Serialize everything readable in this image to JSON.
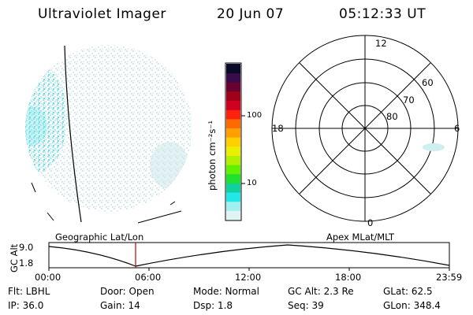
{
  "header": {
    "instrument": "Ultraviolet Imager",
    "date": "20 Jun 07",
    "time": "05:12:33 UT"
  },
  "colorbar": {
    "unit_label": "photon cm⁻²s⁻¹",
    "ticks": [
      "100",
      "10"
    ],
    "colors": [
      "#0a0a2a",
      "#3a0a4a",
      "#6a0030",
      "#a00018",
      "#d00020",
      "#ff2010",
      "#ff6a00",
      "#ffa000",
      "#ffd000",
      "#e8f000",
      "#b0f000",
      "#60f000",
      "#20e030",
      "#10d0a0",
      "#20e8e8",
      "#a0f0f0",
      "#e0f4f4"
    ]
  },
  "left_panel": {
    "label": "Geographic Lat/Lon"
  },
  "right_panel": {
    "label": "Apex MLat/MLT",
    "mlt_labels": {
      "top": "12",
      "left": "18",
      "right": "6",
      "bottom": "0"
    },
    "lat_labels": [
      "60",
      "70",
      "80"
    ]
  },
  "altitude_plot": {
    "ylabel": "GC Alt",
    "yticks": [
      "9.0",
      "1.8"
    ],
    "xticks": [
      "00:00",
      "06:00",
      "12:00",
      "18:00",
      "23:59"
    ],
    "marker_time": "05:12"
  },
  "info": {
    "filter": "Flt: LBHL",
    "door": "Door: Open",
    "mode": "Mode: Normal",
    "gc_alt": "GC Alt: 2.3 Re",
    "glat": "GLat:  62.5",
    "ip": "IP: 36.0",
    "gain": "Gain: 14",
    "dsp": "Dsp:    1.8",
    "seq": "Seq: 39",
    "glon": "GLon: 348.4"
  }
}
